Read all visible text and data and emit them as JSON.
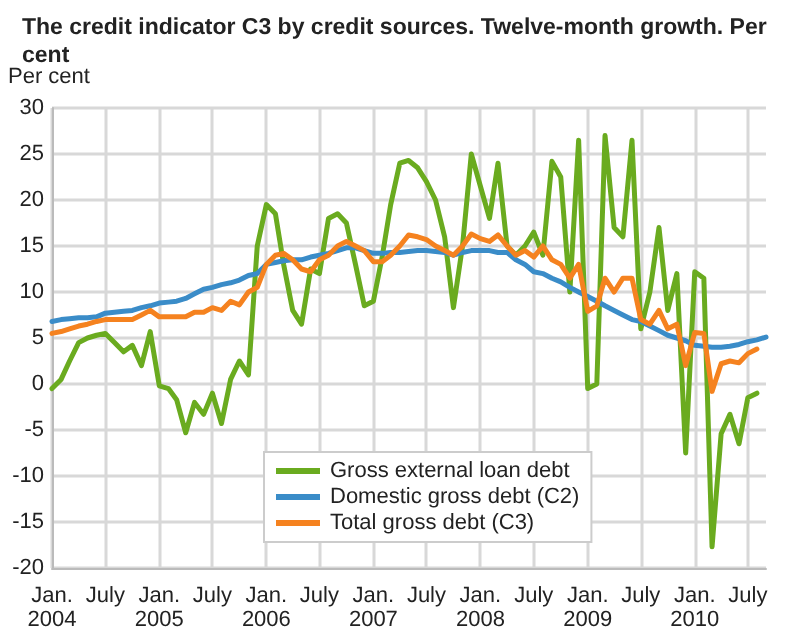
{
  "chart_data": {
    "type": "line",
    "title": "The credit indicator C3 by credit sources. Twelve-month growth. Per cent",
    "ylabel": "Per cent",
    "x": [
      "2004-01",
      "2004-02",
      "2004-03",
      "2004-04",
      "2004-05",
      "2004-06",
      "2004-07",
      "2004-08",
      "2004-09",
      "2004-10",
      "2004-11",
      "2004-12",
      "2005-01",
      "2005-02",
      "2005-03",
      "2005-04",
      "2005-05",
      "2005-06",
      "2005-07",
      "2005-08",
      "2005-09",
      "2005-10",
      "2005-11",
      "2005-12",
      "2006-01",
      "2006-02",
      "2006-03",
      "2006-04",
      "2006-05",
      "2006-06",
      "2006-07",
      "2006-08",
      "2006-09",
      "2006-10",
      "2006-11",
      "2006-12",
      "2007-01",
      "2007-02",
      "2007-03",
      "2007-04",
      "2007-05",
      "2007-06",
      "2007-07",
      "2007-08",
      "2007-09",
      "2007-10",
      "2007-11",
      "2007-12",
      "2008-01",
      "2008-02",
      "2008-03",
      "2008-04",
      "2008-05",
      "2008-06",
      "2008-07",
      "2008-08",
      "2008-09",
      "2008-10",
      "2008-11",
      "2008-12",
      "2009-01",
      "2009-02",
      "2009-03",
      "2009-04",
      "2009-05",
      "2009-06",
      "2009-07",
      "2009-08",
      "2009-09",
      "2009-10",
      "2009-11",
      "2009-12",
      "2010-01",
      "2010-02",
      "2010-03",
      "2010-04",
      "2010-05",
      "2010-06",
      "2010-07",
      "2010-08",
      "2010-09"
    ],
    "series": [
      {
        "name": "Gross external loan debt",
        "color": "#6aab1f",
        "values": [
          -0.5,
          0.5,
          2.5,
          4.5,
          5,
          5.3,
          5.5,
          4.5,
          3.5,
          4.2,
          2,
          5.7,
          -0.2,
          -0.5,
          -1.7,
          -5.3,
          -2,
          -3.3,
          -1,
          -4.3,
          0.5,
          2.5,
          1,
          15,
          19.5,
          18.5,
          13,
          8,
          6.5,
          12.5,
          12,
          18,
          18.5,
          17.5,
          13,
          8.5,
          9,
          14,
          19.5,
          24,
          24.3,
          23.5,
          22,
          20,
          16,
          8.3,
          15,
          25,
          21.5,
          18,
          24,
          15,
          14,
          15,
          16.5,
          14,
          24.2,
          22.5,
          10,
          26.5,
          -0.5,
          0,
          27,
          17,
          16,
          26.5,
          6,
          10,
          17,
          8,
          12,
          -7.5,
          12.2,
          11.5,
          -17.7,
          -5.4,
          -3.3,
          -6.5,
          -1.5,
          -1,
          null
        ]
      },
      {
        "name": "Domestic gross debt (C2)",
        "color": "#3a8cc8",
        "values": [
          6.8,
          7,
          7.1,
          7.2,
          7.2,
          7.3,
          7.7,
          7.8,
          7.9,
          8,
          8.3,
          8.5,
          8.8,
          8.9,
          9,
          9.3,
          9.8,
          10.3,
          10.5,
          10.8,
          11,
          11.3,
          11.8,
          12,
          13,
          13.2,
          13.4,
          13.5,
          13.5,
          13.8,
          14,
          14.2,
          14.5,
          14.8,
          14.8,
          14.5,
          14.2,
          14.2,
          14.3,
          14.3,
          14.4,
          14.5,
          14.5,
          14.4,
          14.3,
          14,
          14.3,
          14.5,
          14.5,
          14.5,
          14.3,
          14.3,
          13.5,
          13,
          12.2,
          12,
          11.5,
          11.1,
          10.5,
          10,
          9.5,
          9,
          8.5,
          8,
          7.5,
          7,
          6.8,
          6.3,
          5.8,
          5.3,
          5,
          4.7,
          4.2,
          4.1,
          4,
          4,
          4.1,
          4.3,
          4.6,
          4.8,
          5.1
        ]
      },
      {
        "name": "Total gross debt (C3)",
        "color": "#f5821f",
        "values": [
          5.5,
          5.7,
          6,
          6.3,
          6.5,
          6.8,
          7,
          7,
          7,
          7,
          7.5,
          8,
          7.3,
          7.3,
          7.3,
          7.3,
          7.8,
          7.8,
          8.3,
          8,
          9,
          8.6,
          10,
          10.5,
          13,
          14,
          14.2,
          13.5,
          12.5,
          12.2,
          13.5,
          14,
          15,
          15.5,
          15,
          14.5,
          13.3,
          13.3,
          14,
          15,
          16.2,
          16,
          15.7,
          15,
          14.5,
          14,
          15,
          16.3,
          15.8,
          15.5,
          16.2,
          15,
          14,
          14.5,
          13.8,
          15,
          13.5,
          13,
          11.5,
          13,
          7.9,
          8.5,
          11.5,
          10,
          11.5,
          11.5,
          7,
          6.5,
          8,
          6,
          6.5,
          2,
          5.6,
          5.5,
          -0.8,
          2.2,
          2.5,
          2.3,
          3.3,
          3.8,
          null
        ]
      }
    ],
    "xlim": [
      "2004-01",
      "2010-09"
    ],
    "xticks": [
      {
        "value": "2004-01",
        "label": "Jan.\n2004"
      },
      {
        "value": "2004-07",
        "label": "July"
      },
      {
        "value": "2005-01",
        "label": "Jan.\n2005"
      },
      {
        "value": "2005-07",
        "label": "July"
      },
      {
        "value": "2006-01",
        "label": "Jan.\n2006"
      },
      {
        "value": "2006-07",
        "label": "July"
      },
      {
        "value": "2007-01",
        "label": "Jan.\n2007"
      },
      {
        "value": "2007-07",
        "label": "July"
      },
      {
        "value": "2008-01",
        "label": "Jan.\n2008"
      },
      {
        "value": "2008-07",
        "label": "July"
      },
      {
        "value": "2009-01",
        "label": "Jan.\n2009"
      },
      {
        "value": "2009-07",
        "label": "July"
      },
      {
        "value": "2010-01",
        "label": "Jan.\n2010"
      },
      {
        "value": "2010-07",
        "label": "July"
      }
    ],
    "ylim": [
      -20,
      30
    ],
    "yticks": [
      -20,
      -15,
      -10,
      -5,
      0,
      5,
      10,
      15,
      20,
      25,
      30
    ],
    "grid": true,
    "legend": "bottom",
    "line_style": "solid",
    "marker": "none"
  }
}
